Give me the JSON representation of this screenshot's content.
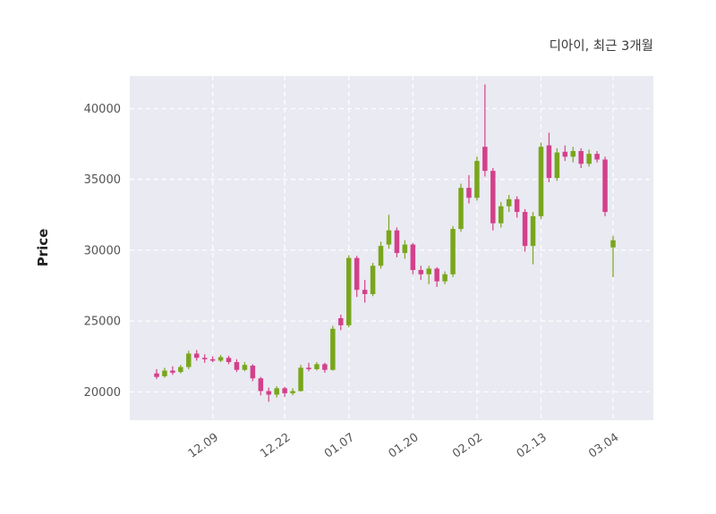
{
  "chart_data": {
    "type": "candlestick",
    "title": "디아이, 최근 3개월",
    "ylabel": "Price",
    "xlabel": "",
    "ylim": [
      18000,
      42300
    ],
    "y_ticks": [
      20000,
      25000,
      30000,
      35000,
      40000
    ],
    "x_ticks": [
      {
        "index": 7,
        "label": "12.09"
      },
      {
        "index": 16,
        "label": "12.22"
      },
      {
        "index": 24,
        "label": "01.07"
      },
      {
        "index": 32,
        "label": "01.20"
      },
      {
        "index": 40,
        "label": "02.02"
      },
      {
        "index": 48,
        "label": "02.13"
      },
      {
        "index": 57,
        "label": "03.04"
      }
    ],
    "grid": true,
    "legend": false,
    "colors": {
      "up": "#79a61d",
      "down": "#d2418a",
      "plot_bg": "#eaeaf2",
      "grid": "#ffffff",
      "tick_text": "#555555",
      "title_text": "#3a3a3a"
    },
    "candles_format": [
      "open",
      "high",
      "low",
      "close"
    ],
    "candles": [
      [
        21300,
        21600,
        20900,
        21050
      ],
      [
        21100,
        21700,
        21000,
        21500
      ],
      [
        21500,
        21800,
        21200,
        21350
      ],
      [
        21400,
        21900,
        21300,
        21750
      ],
      [
        21750,
        22900,
        21600,
        22700
      ],
      [
        22700,
        22950,
        22200,
        22400
      ],
      [
        22400,
        22650,
        22050,
        22300
      ],
      [
        22300,
        22500,
        22100,
        22200
      ],
      [
        22200,
        22600,
        22100,
        22450
      ],
      [
        22400,
        22550,
        21950,
        22100
      ],
      [
        22100,
        22300,
        21400,
        21550
      ],
      [
        21550,
        22100,
        21450,
        21900
      ],
      [
        21850,
        21950,
        20750,
        20950
      ],
      [
        20950,
        21050,
        19750,
        20050
      ],
      [
        20050,
        20300,
        19300,
        19800
      ],
      [
        19800,
        20400,
        19600,
        20250
      ],
      [
        20250,
        20350,
        19650,
        19900
      ],
      [
        19900,
        20250,
        19750,
        20050
      ],
      [
        20050,
        21900,
        20000,
        21700
      ],
      [
        21700,
        22050,
        21450,
        21600
      ],
      [
        21600,
        22100,
        21500,
        21950
      ],
      [
        21950,
        22050,
        21350,
        21550
      ],
      [
        21550,
        24650,
        21500,
        24450
      ],
      [
        25200,
        25450,
        24350,
        24700
      ],
      [
        24700,
        29650,
        24550,
        29450
      ],
      [
        29450,
        29600,
        26700,
        27200
      ],
      [
        27200,
        27900,
        26300,
        26900
      ],
      [
        26900,
        29100,
        26750,
        28900
      ],
      [
        28900,
        30600,
        28700,
        30300
      ],
      [
        30400,
        32500,
        30100,
        31400
      ],
      [
        31400,
        31600,
        29500,
        29800
      ],
      [
        29800,
        30700,
        29400,
        30400
      ],
      [
        30400,
        30500,
        28300,
        28600
      ],
      [
        28600,
        28900,
        27900,
        28300
      ],
      [
        28300,
        28900,
        27600,
        28700
      ],
      [
        28700,
        28800,
        27400,
        27800
      ],
      [
        27800,
        28500,
        27600,
        28300
      ],
      [
        28300,
        31700,
        28100,
        31500
      ],
      [
        31500,
        34700,
        31300,
        34400
      ],
      [
        34400,
        35300,
        33300,
        33700
      ],
      [
        33700,
        36600,
        33500,
        36300
      ],
      [
        37300,
        41700,
        35200,
        35600
      ],
      [
        35600,
        35800,
        31400,
        31900
      ],
      [
        31900,
        33400,
        31600,
        33100
      ],
      [
        33100,
        33900,
        32700,
        33600
      ],
      [
        33600,
        33800,
        32300,
        32700
      ],
      [
        32700,
        32900,
        29900,
        30300
      ],
      [
        30300,
        32700,
        29000,
        32400
      ],
      [
        32400,
        37600,
        32200,
        37300
      ],
      [
        37400,
        38300,
        34800,
        35100
      ],
      [
        35100,
        37200,
        34900,
        36900
      ],
      [
        36950,
        37400,
        36300,
        36600
      ],
      [
        36600,
        37300,
        36200,
        37000
      ],
      [
        37000,
        37200,
        35800,
        36100
      ],
      [
        36100,
        37100,
        35900,
        36800
      ],
      [
        36800,
        37000,
        36200,
        36400
      ],
      [
        36400,
        36600,
        32400,
        32700
      ],
      [
        30200,
        31000,
        28100,
        30700
      ]
    ]
  }
}
